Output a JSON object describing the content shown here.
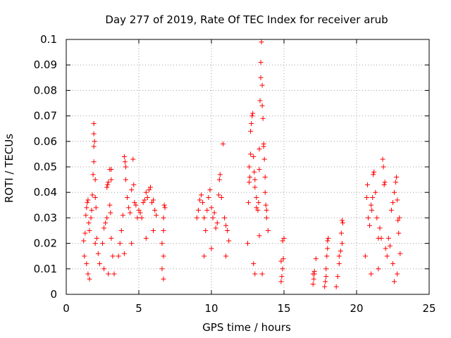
{
  "chart_data": {
    "type": "scatter",
    "title": "Day 277 of 2019, Rate Of TEC Index for receiver arub",
    "xlabel": "GPS time / hours",
    "ylabel": "ROTI / TECUs",
    "xlim": [
      0,
      25
    ],
    "ylim": [
      0,
      0.1
    ],
    "xticks": [
      0,
      5,
      10,
      15,
      20,
      25
    ],
    "xtick_labels": [
      "0",
      "5",
      "10",
      "15",
      "20",
      "25"
    ],
    "yticks": [
      0,
      0.01,
      0.02,
      0.03,
      0.04,
      0.05,
      0.06,
      0.07,
      0.08,
      0.09,
      0.1
    ],
    "ytick_labels": [
      "0",
      "0.01",
      "0.02",
      "0.03",
      "0.04",
      "0.05",
      "0.06",
      "0.07",
      "0.08",
      "0.09",
      "0.1"
    ],
    "grid": true,
    "marker": "+",
    "color": "#ff0000",
    "series": [
      {
        "name": "ROTI",
        "points": [
          [
            1.2,
            0.021
          ],
          [
            1.3,
            0.024
          ],
          [
            1.35,
            0.031
          ],
          [
            1.4,
            0.034
          ],
          [
            1.45,
            0.036
          ],
          [
            1.5,
            0.037
          ],
          [
            1.55,
            0.028
          ],
          [
            1.6,
            0.025
          ],
          [
            1.25,
            0.015
          ],
          [
            1.4,
            0.012
          ],
          [
            1.5,
            0.008
          ],
          [
            1.6,
            0.006
          ],
          [
            1.7,
            0.03
          ],
          [
            1.75,
            0.033
          ],
          [
            1.8,
            0.039
          ],
          [
            1.85,
            0.047
          ],
          [
            1.9,
            0.052
          ],
          [
            1.9,
            0.058
          ],
          [
            1.95,
            0.06
          ],
          [
            1.9,
            0.063
          ],
          [
            1.9,
            0.067
          ],
          [
            2.0,
            0.045
          ],
          [
            2.0,
            0.038
          ],
          [
            2.05,
            0.034
          ],
          [
            2.1,
            0.022
          ],
          [
            2.2,
            0.016
          ],
          [
            2.3,
            0.012
          ],
          [
            2.0,
            0.02
          ],
          [
            2.5,
            0.02
          ],
          [
            2.6,
            0.026
          ],
          [
            2.7,
            0.028
          ],
          [
            2.8,
            0.03
          ],
          [
            2.8,
            0.042
          ],
          [
            2.85,
            0.043
          ],
          [
            2.9,
            0.044
          ],
          [
            3.0,
            0.049
          ],
          [
            3.1,
            0.049
          ],
          [
            3.1,
            0.045
          ],
          [
            3.0,
            0.035
          ],
          [
            3.05,
            0.032
          ],
          [
            3.1,
            0.022
          ],
          [
            3.2,
            0.015
          ],
          [
            2.6,
            0.01
          ],
          [
            2.9,
            0.008
          ],
          [
            3.3,
            0.008
          ],
          [
            3.6,
            0.015
          ],
          [
            3.7,
            0.02
          ],
          [
            3.8,
            0.025
          ],
          [
            3.9,
            0.031
          ],
          [
            4.0,
            0.054
          ],
          [
            4.05,
            0.052
          ],
          [
            4.1,
            0.05
          ],
          [
            4.1,
            0.045
          ],
          [
            4.2,
            0.038
          ],
          [
            4.3,
            0.034
          ],
          [
            4.4,
            0.032
          ],
          [
            4.5,
            0.041
          ],
          [
            4.6,
            0.053
          ],
          [
            4.65,
            0.043
          ],
          [
            4.7,
            0.036
          ],
          [
            4.8,
            0.035
          ],
          [
            4.9,
            0.03
          ],
          [
            5.0,
            0.033
          ],
          [
            5.1,
            0.032
          ],
          [
            5.2,
            0.03
          ],
          [
            5.3,
            0.036
          ],
          [
            5.4,
            0.037
          ],
          [
            5.5,
            0.04
          ],
          [
            5.6,
            0.038
          ],
          [
            5.7,
            0.041
          ],
          [
            5.8,
            0.042
          ],
          [
            5.9,
            0.036
          ],
          [
            6.0,
            0.037
          ],
          [
            6.1,
            0.033
          ],
          [
            6.2,
            0.031
          ],
          [
            6.0,
            0.025
          ],
          [
            5.5,
            0.022
          ],
          [
            4.5,
            0.02
          ],
          [
            4.0,
            0.016
          ],
          [
            6.6,
            0.02
          ],
          [
            6.7,
            0.025
          ],
          [
            6.7,
            0.03
          ],
          [
            6.75,
            0.035
          ],
          [
            6.8,
            0.034
          ],
          [
            6.7,
            0.015
          ],
          [
            6.6,
            0.01
          ],
          [
            6.7,
            0.006
          ],
          [
            9.0,
            0.03
          ],
          [
            9.1,
            0.033
          ],
          [
            9.2,
            0.037
          ],
          [
            9.3,
            0.039
          ],
          [
            9.4,
            0.036
          ],
          [
            9.5,
            0.03
          ],
          [
            9.6,
            0.025
          ],
          [
            9.7,
            0.033
          ],
          [
            9.8,
            0.038
          ],
          [
            9.9,
            0.041
          ],
          [
            10.0,
            0.034
          ],
          [
            10.1,
            0.03
          ],
          [
            10.2,
            0.032
          ],
          [
            10.3,
            0.026
          ],
          [
            10.4,
            0.028
          ],
          [
            10.5,
            0.039
          ],
          [
            10.55,
            0.045
          ],
          [
            10.6,
            0.047
          ],
          [
            10.7,
            0.038
          ],
          [
            10.8,
            0.059
          ],
          [
            10.9,
            0.03
          ],
          [
            11.0,
            0.027
          ],
          [
            11.1,
            0.025
          ],
          [
            11.2,
            0.021
          ],
          [
            11.0,
            0.015
          ],
          [
            10.0,
            0.018
          ],
          [
            9.5,
            0.015
          ],
          [
            12.5,
            0.02
          ],
          [
            12.55,
            0.036
          ],
          [
            12.6,
            0.044
          ],
          [
            12.65,
            0.046
          ],
          [
            12.6,
            0.05
          ],
          [
            12.7,
            0.055
          ],
          [
            12.7,
            0.064
          ],
          [
            12.75,
            0.067
          ],
          [
            12.8,
            0.07
          ],
          [
            12.85,
            0.071
          ],
          [
            12.9,
            0.054
          ],
          [
            12.95,
            0.048
          ],
          [
            13.0,
            0.045
          ],
          [
            13.0,
            0.042
          ],
          [
            13.1,
            0.038
          ],
          [
            13.1,
            0.034
          ],
          [
            13.2,
            0.033
          ],
          [
            13.25,
            0.036
          ],
          [
            13.3,
            0.049
          ],
          [
            13.3,
            0.057
          ],
          [
            13.35,
            0.076
          ],
          [
            13.4,
            0.085
          ],
          [
            13.4,
            0.091
          ],
          [
            13.45,
            0.099
          ],
          [
            13.5,
            0.082
          ],
          [
            13.5,
            0.074
          ],
          [
            13.55,
            0.069
          ],
          [
            13.6,
            0.059
          ],
          [
            13.6,
            0.058
          ],
          [
            13.65,
            0.053
          ],
          [
            13.7,
            0.046
          ],
          [
            13.7,
            0.04
          ],
          [
            13.75,
            0.035
          ],
          [
            13.8,
            0.033
          ],
          [
            13.8,
            0.03
          ],
          [
            13.9,
            0.025
          ],
          [
            13.3,
            0.023
          ],
          [
            12.9,
            0.012
          ],
          [
            13.0,
            0.008
          ],
          [
            13.5,
            0.008
          ],
          [
            14.8,
            0.005
          ],
          [
            14.85,
            0.007
          ],
          [
            14.9,
            0.01
          ],
          [
            14.95,
            0.014
          ],
          [
            14.9,
            0.021
          ],
          [
            15.0,
            0.022
          ],
          [
            14.8,
            0.013
          ],
          [
            17.0,
            0.004
          ],
          [
            17.05,
            0.006
          ],
          [
            17.1,
            0.008
          ],
          [
            17.1,
            0.009
          ],
          [
            17.2,
            0.014
          ],
          [
            17.0,
            0.008
          ],
          [
            17.8,
            0.003
          ],
          [
            17.85,
            0.005
          ],
          [
            17.9,
            0.01
          ],
          [
            17.95,
            0.015
          ],
          [
            18.0,
            0.021
          ],
          [
            18.05,
            0.022
          ],
          [
            18.0,
            0.018
          ],
          [
            17.9,
            0.007
          ],
          [
            18.6,
            0.003
          ],
          [
            18.7,
            0.007
          ],
          [
            18.8,
            0.012
          ],
          [
            18.9,
            0.017
          ],
          [
            18.95,
            0.024
          ],
          [
            19.0,
            0.029
          ],
          [
            19.05,
            0.028
          ],
          [
            19.0,
            0.02
          ],
          [
            18.8,
            0.015
          ],
          [
            20.6,
            0.015
          ],
          [
            20.7,
            0.038
          ],
          [
            20.75,
            0.043
          ],
          [
            20.8,
            0.03
          ],
          [
            20.9,
            0.027
          ],
          [
            21.0,
            0.035
          ],
          [
            21.05,
            0.033
          ],
          [
            21.1,
            0.038
          ],
          [
            21.15,
            0.047
          ],
          [
            21.2,
            0.048
          ],
          [
            21.3,
            0.04
          ],
          [
            21.4,
            0.03
          ],
          [
            21.5,
            0.022
          ],
          [
            21.6,
            0.026
          ],
          [
            21.7,
            0.022
          ],
          [
            21.8,
            0.053
          ],
          [
            21.85,
            0.05
          ],
          [
            21.9,
            0.043
          ],
          [
            21.95,
            0.044
          ],
          [
            22.0,
            0.018
          ],
          [
            22.1,
            0.015
          ],
          [
            22.2,
            0.022
          ],
          [
            22.3,
            0.019
          ],
          [
            22.4,
            0.033
          ],
          [
            22.5,
            0.036
          ],
          [
            22.6,
            0.04
          ],
          [
            22.7,
            0.044
          ],
          [
            22.75,
            0.046
          ],
          [
            22.8,
            0.037
          ],
          [
            22.85,
            0.029
          ],
          [
            22.9,
            0.024
          ],
          [
            22.95,
            0.03
          ],
          [
            23.0,
            0.016
          ],
          [
            22.5,
            0.012
          ],
          [
            21.5,
            0.01
          ],
          [
            21.0,
            0.008
          ],
          [
            22.6,
            0.005
          ],
          [
            22.8,
            0.008
          ]
        ]
      }
    ]
  }
}
